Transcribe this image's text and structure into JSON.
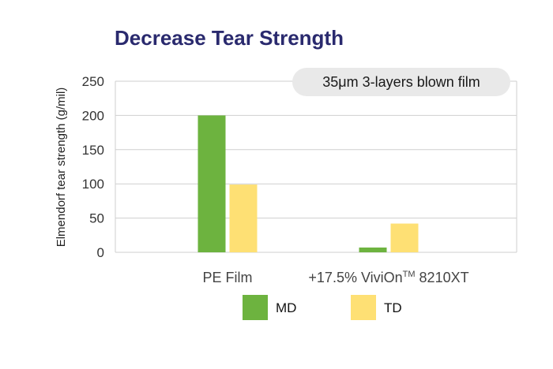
{
  "chart_data": {
    "type": "bar",
    "title": "Decrease Tear Strength",
    "ylabel": "Elmendorf tear strength (g/mil)",
    "xlabel": "",
    "annotation": "35μm 3-layers blown film",
    "categories": [
      "PE Film",
      "+17.5% ViviOn™ 8210XT"
    ],
    "category_parts": [
      {
        "main": "PE Film",
        "sup": "",
        "rest": ""
      },
      {
        "main": "+17.5% ViviOn",
        "sup": "TM",
        "rest": " 8210XT"
      }
    ],
    "series": [
      {
        "name": "MD",
        "values": [
          200,
          7
        ],
        "color": "#6db33f"
      },
      {
        "name": "TD",
        "values": [
          99,
          42
        ],
        "color": "#fee074"
      }
    ],
    "ylim": [
      0,
      250
    ],
    "yticks": [
      0,
      50,
      100,
      150,
      200,
      250
    ],
    "grid": true,
    "legend_position": "bottom"
  }
}
